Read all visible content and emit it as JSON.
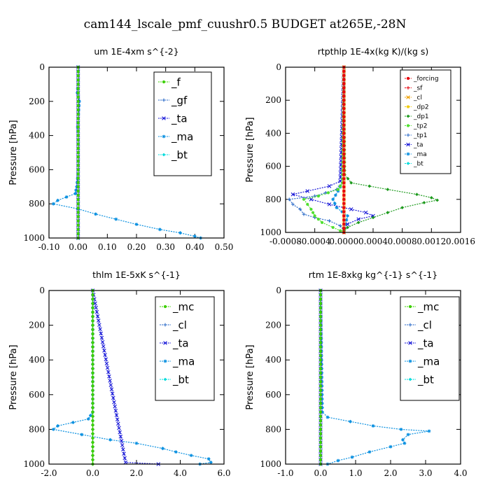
{
  "main_title": "cam144_lscale_pmf_cuushr0.5  BUDGET at265E,-28N",
  "chart_data": [
    {
      "type": "line",
      "title": "um  1E-4xm s^{-2}",
      "xlabel": "",
      "ylabel": "Pressure [hPa]",
      "xlim": [
        -0.1,
        0.5
      ],
      "ylim": [
        1000,
        0
      ],
      "xticks": [
        "-0.10",
        "0.00",
        "0.10",
        "0.20",
        "0.30",
        "0.40",
        "0.50"
      ],
      "xtick_values": [
        -0.1,
        0.0,
        0.1,
        0.2,
        0.3,
        0.4,
        0.5
      ],
      "yticks": [
        "0",
        "200",
        "400",
        "600",
        "800",
        "1000"
      ],
      "ytick_values": [
        0,
        200,
        400,
        600,
        800,
        1000
      ],
      "legend_labels": [
        "_f",
        "_gf",
        "_ta",
        "_ma",
        "_bt"
      ],
      "legend_colors": [
        "#3cd000",
        "#2a6ac8",
        "#1818d8",
        "#0a90e0",
        "#00dcdc"
      ],
      "series": [
        {
          "name": "_f",
          "color": "#3cd000",
          "pressure": [
            0,
            100,
            200,
            300,
            400,
            500,
            600,
            700,
            800,
            900,
            1000
          ],
          "values": [
            0,
            0,
            0,
            0,
            0,
            0,
            0,
            0,
            0,
            0,
            0
          ]
        },
        {
          "name": "_gf",
          "color": "#2a6ac8",
          "pressure": [
            0,
            100,
            200,
            300,
            400,
            500,
            600,
            700,
            800,
            900,
            1000
          ],
          "values": [
            0,
            0,
            0,
            0,
            0,
            0,
            0,
            0,
            0,
            0,
            0
          ]
        },
        {
          "name": "_ta",
          "color": "#1818d8",
          "pressure": [
            0,
            100,
            200,
            300,
            400,
            500,
            600,
            700,
            800,
            900,
            1000
          ],
          "values": [
            0,
            0,
            0,
            0,
            0,
            0,
            0,
            0,
            0,
            0,
            0
          ]
        },
        {
          "name": "_ma",
          "color": "#0a90e0",
          "pressure": [
            0,
            50,
            100,
            150,
            200,
            250,
            300,
            350,
            400,
            450,
            500,
            550,
            600,
            650,
            700,
            740,
            760,
            780,
            800,
            830,
            860,
            890,
            920,
            950,
            970,
            990,
            1000
          ],
          "values": [
            0.0,
            0.0,
            0.0,
            -0.003,
            0.004,
            0.002,
            0.0,
            -0.002,
            0.0,
            0.0,
            0.0,
            0.0,
            0.0,
            -0.002,
            -0.005,
            -0.01,
            -0.04,
            -0.07,
            -0.085,
            0.0,
            0.06,
            0.13,
            0.2,
            0.28,
            0.35,
            0.4,
            0.42
          ]
        },
        {
          "name": "_bt",
          "color": "#00dcdc",
          "pressure": [
            0,
            100,
            200,
            300,
            400,
            500,
            600,
            700,
            800,
            900,
            1000
          ],
          "values": [
            0,
            0,
            0,
            0,
            0,
            0,
            0,
            0,
            0,
            0,
            0
          ]
        }
      ]
    },
    {
      "type": "line",
      "title": "rtpthlp  1E-4x(kg K)/(kg s)",
      "xlabel": "",
      "ylabel": "Pressure [hPa]",
      "xlim": [
        -0.0008,
        0.0016
      ],
      "ylim": [
        1000,
        0
      ],
      "xticks": [
        "-0.0008",
        "-0.0004",
        "0.0000",
        "0.0004",
        "0.0008",
        "0.0012",
        "0.0016"
      ],
      "xtick_values": [
        -0.0008,
        -0.0004,
        0.0,
        0.0004,
        0.0008,
        0.0012,
        0.0016
      ],
      "yticks": [
        "0",
        "200",
        "400",
        "600",
        "800",
        "1000"
      ],
      "ytick_values": [
        0,
        200,
        400,
        600,
        800,
        1000
      ],
      "legend_labels": [
        "_forcing",
        "_sf",
        "_cl",
        "_dp2",
        "_dp1",
        "_tp2",
        "_tp1",
        "_ta",
        "_ma",
        "_bt"
      ],
      "legend_colors": [
        "#e8000a",
        "#e8000a",
        "#f0a000",
        "#f0c800",
        "#1c9a1c",
        "#50e030",
        "#2a6ac8",
        "#1818d8",
        "#0a90e0",
        "#00dcdc"
      ],
      "series": [
        {
          "name": "_forcing",
          "color": "#e8000a",
          "pressure": [
            0,
            100,
            200,
            300,
            400,
            500,
            600,
            700,
            800,
            900,
            1000
          ],
          "values": [
            0,
            0,
            0,
            0,
            0,
            0,
            0,
            0,
            0,
            0,
            0
          ]
        },
        {
          "name": "_sf",
          "color": "#e8000a",
          "pressure": [
            0,
            100,
            200,
            300,
            400,
            500,
            600,
            700,
            800,
            900,
            1000
          ],
          "values": [
            0,
            0,
            0,
            0,
            0,
            0,
            0,
            0,
            0,
            0,
            0
          ]
        },
        {
          "name": "_cl",
          "color": "#f0a000",
          "pressure": [
            0,
            100,
            200,
            300,
            400,
            500,
            600,
            700,
            800,
            900,
            1000
          ],
          "values": [
            0,
            0,
            0,
            0,
            0,
            0,
            0,
            0,
            0,
            0,
            0
          ]
        },
        {
          "name": "_dp2",
          "color": "#f0c800",
          "pressure": [
            0,
            100,
            200,
            300,
            400,
            500,
            600,
            700,
            800,
            900,
            1000
          ],
          "values": [
            0,
            0,
            0,
            0,
            0,
            0,
            0,
            0,
            0,
            0,
            0
          ]
        },
        {
          "name": "_dp1",
          "color": "#1c9a1c",
          "pressure": [
            0,
            650,
            700,
            740,
            770,
            790,
            805,
            820,
            850,
            880,
            910,
            940,
            970,
            990,
            1000
          ],
          "values": [
            0.0,
            1e-05,
            0.0001,
            0.0006,
            0.001,
            0.0012,
            0.00128,
            0.0011,
            0.0008,
            0.0006,
            0.0004,
            0.0002,
            5e-05,
            0.0,
            0.0
          ]
        },
        {
          "name": "_tp2",
          "color": "#50e030",
          "pressure": [
            0,
            700,
            740,
            780,
            800,
            830,
            860,
            900,
            940,
            970,
            990,
            1000
          ],
          "values": [
            0.0,
            -2e-05,
            -8e-05,
            -0.00035,
            -0.00055,
            -0.0005,
            -0.00045,
            -0.0004,
            -0.0003,
            -0.00015,
            -5e-05,
            0.0
          ]
        },
        {
          "name": "_tp1",
          "color": "#2a6ac8",
          "pressure": [
            0,
            700,
            740,
            780,
            800,
            830,
            860,
            890,
            910,
            930,
            960,
            990,
            1000
          ],
          "values": [
            0.0,
            -2e-05,
            -0.0001,
            -0.0004,
            -0.00075,
            -0.0007,
            -0.0006,
            -0.00055,
            -0.0004,
            -0.0002,
            -5e-05,
            0.0,
            0.0
          ]
        },
        {
          "name": "_ta",
          "color": "#1818d8",
          "pressure": [
            0,
            690,
            720,
            750,
            770,
            800,
            830,
            860,
            880,
            900,
            920,
            950,
            980,
            1000
          ],
          "values": [
            0.0,
            -5e-05,
            -0.0002,
            -0.0005,
            -0.0007,
            -0.00045,
            -0.0002,
            0.0001,
            0.0003,
            0.0004,
            0.0002,
            5e-05,
            0.0,
            0.0
          ]
        },
        {
          "name": "_ma",
          "color": "#0a90e0",
          "pressure": [
            0,
            700,
            750,
            800,
            850,
            900,
            950,
            1000
          ],
          "values": [
            0.0,
            -2e-05,
            -8e-05,
            -0.00015,
            -0.0001,
            5e-05,
            2e-05,
            0.0
          ]
        },
        {
          "name": "_bt",
          "color": "#00dcdc",
          "pressure": [
            0,
            100,
            200,
            300,
            400,
            500,
            600,
            700,
            800,
            900,
            1000
          ],
          "values": [
            0,
            0,
            0,
            0,
            0,
            0,
            0,
            0,
            0,
            0,
            0
          ]
        }
      ]
    },
    {
      "type": "line",
      "title": "thlm  1E-5xK s^{-1}",
      "xlabel": "",
      "ylabel": "Pressure [hPa]",
      "xlim": [
        -2.0,
        6.0
      ],
      "ylim": [
        1000,
        0
      ],
      "xticks": [
        "-2.0",
        "0.0",
        "2.0",
        "4.0",
        "6.0"
      ],
      "xtick_values": [
        -2.0,
        0.0,
        2.0,
        4.0,
        6.0
      ],
      "yticks": [
        "0",
        "200",
        "400",
        "600",
        "800",
        "1000"
      ],
      "ytick_values": [
        0,
        200,
        400,
        600,
        800,
        1000
      ],
      "legend_labels": [
        "_mc",
        "_cl",
        "_ta",
        "_ma",
        "_bt"
      ],
      "legend_colors": [
        "#3cd000",
        "#2a6ac8",
        "#1818d8",
        "#0a90e0",
        "#00dcdc"
      ],
      "series": [
        {
          "name": "_mc",
          "color": "#3cd000",
          "pressure": [
            0,
            100,
            200,
            300,
            400,
            500,
            600,
            700,
            800,
            900,
            1000
          ],
          "values": [
            0,
            0,
            0,
            0,
            0,
            0,
            0,
            0,
            0,
            0,
            0
          ]
        },
        {
          "name": "_cl",
          "color": "#2a6ac8",
          "pressure": [
            0,
            100,
            200,
            300,
            400,
            500,
            600,
            700,
            800,
            900,
            1000
          ],
          "values": [
            0,
            0,
            0,
            0,
            0,
            0,
            0,
            0,
            0,
            0,
            0
          ]
        },
        {
          "name": "_ta",
          "color": "#1818d8",
          "pressure": [
            0,
            990,
            1000
          ],
          "values": [
            0.0,
            1.5,
            3.0
          ]
        },
        {
          "name": "_ma",
          "color": "#0a90e0",
          "pressure": [
            0,
            700,
            740,
            760,
            780,
            800,
            830,
            860,
            880,
            910,
            930,
            950,
            970,
            990,
            1000
          ],
          "values": [
            0.0,
            0.0,
            -0.2,
            -0.9,
            -1.6,
            -1.8,
            -0.5,
            0.8,
            2.0,
            3.2,
            3.8,
            4.5,
            5.3,
            5.4,
            4.9
          ]
        },
        {
          "name": "_bt",
          "color": "#00dcdc",
          "pressure": [
            0,
            100,
            200,
            300,
            400,
            500,
            600,
            700,
            800,
            900,
            1000
          ],
          "values": [
            0,
            0,
            0,
            0,
            0,
            0,
            0,
            0,
            0,
            0,
            0
          ]
        }
      ]
    },
    {
      "type": "line",
      "title": "rtm  1E-8xkg kg^{-1} s^{-1}",
      "xlabel": "",
      "ylabel": "Pressure [hPa]",
      "xlim": [
        -1.0,
        4.0
      ],
      "ylim": [
        1000,
        0
      ],
      "xticks": [
        "-1.0",
        "0.0",
        "1.0",
        "2.0",
        "3.0",
        "4.0"
      ],
      "xtick_values": [
        -1.0,
        0.0,
        1.0,
        2.0,
        3.0,
        4.0
      ],
      "yticks": [
        "0",
        "200",
        "400",
        "600",
        "800",
        "1000"
      ],
      "ytick_values": [
        0,
        200,
        400,
        600,
        800,
        1000
      ],
      "legend_labels": [
        "_mc",
        "_cl",
        "_ta",
        "_ma",
        "_bt"
      ],
      "legend_colors": [
        "#3cd000",
        "#2a6ac8",
        "#1818d8",
        "#0a90e0",
        "#00dcdc"
      ],
      "series": [
        {
          "name": "_mc",
          "color": "#3cd000",
          "pressure": [
            0,
            100,
            200,
            300,
            400,
            500,
            600,
            700,
            800,
            900,
            1000
          ],
          "values": [
            0,
            0,
            0,
            0,
            0,
            0,
            0,
            0,
            0,
            0,
            0
          ]
        },
        {
          "name": "_cl",
          "color": "#2a6ac8",
          "pressure": [
            0,
            100,
            200,
            300,
            400,
            500,
            600,
            700,
            800,
            900,
            1000
          ],
          "values": [
            0,
            0,
            0,
            0,
            0,
            0,
            0,
            0,
            0,
            0,
            0
          ]
        },
        {
          "name": "_ta",
          "color": "#1818d8",
          "pressure": [
            0,
            100,
            200,
            300,
            400,
            500,
            600,
            700,
            800,
            900,
            1000
          ],
          "values": [
            0,
            0,
            0,
            0,
            0,
            0,
            0,
            0,
            0,
            0,
            0
          ]
        },
        {
          "name": "_ma",
          "color": "#0a90e0",
          "pressure": [
            0,
            700,
            730,
            780,
            800,
            810,
            830,
            860,
            880,
            900,
            930,
            960,
            980,
            1000
          ],
          "values": [
            0.0,
            0.05,
            0.2,
            1.5,
            2.3,
            3.1,
            2.5,
            2.35,
            2.4,
            2.0,
            1.4,
            0.9,
            0.5,
            0.2
          ]
        },
        {
          "name": "_bt",
          "color": "#00dcdc",
          "pressure": [
            0,
            100,
            200,
            300,
            400,
            500,
            600,
            700,
            800,
            900,
            1000
          ],
          "values": [
            0,
            0,
            0,
            0,
            0,
            0,
            0,
            0,
            0,
            0,
            0
          ]
        }
      ]
    }
  ]
}
